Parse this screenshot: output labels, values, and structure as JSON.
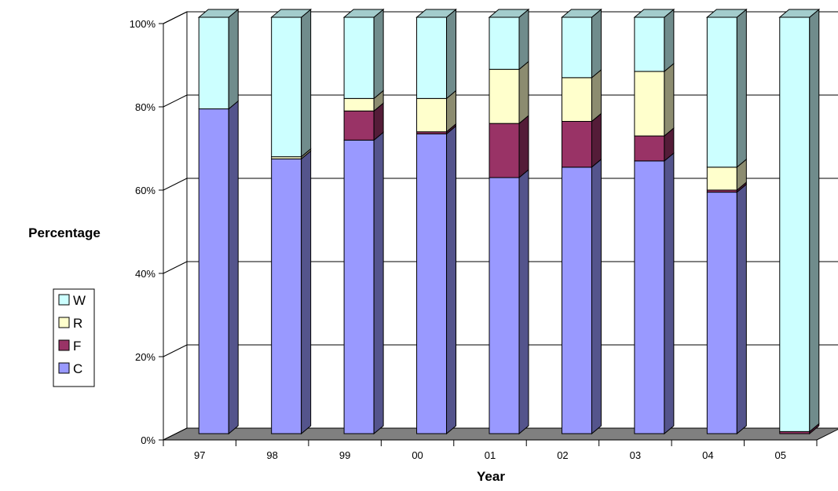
{
  "chart_data": {
    "type": "bar",
    "stacked": true,
    "percent_stacked": true,
    "three_d": true,
    "categories": [
      "97",
      "98",
      "99",
      "00",
      "01",
      "02",
      "03",
      "04",
      "05"
    ],
    "series": [
      {
        "name": "C",
        "color": "#9999FF",
        "values": [
          78,
          66,
          70.5,
          72,
          61.5,
          64,
          65.5,
          58,
          0
        ]
      },
      {
        "name": "F",
        "color": "#993366",
        "values": [
          0,
          0,
          7,
          0.5,
          13,
          11,
          6,
          0.5,
          0.5
        ]
      },
      {
        "name": "R",
        "color": "#FFFFCC",
        "values": [
          0,
          0.5,
          3,
          8,
          13,
          10.5,
          15.5,
          5.5,
          0
        ]
      },
      {
        "name": "W",
        "color": "#CCFFFF",
        "values": [
          22,
          33.5,
          19.5,
          19.5,
          12.5,
          14.5,
          13,
          36,
          99.5
        ]
      }
    ],
    "ylim": [
      0,
      100
    ],
    "yticks": [
      "0%",
      "20%",
      "40%",
      "60%",
      "80%",
      "100%"
    ],
    "xlabel": "Year",
    "ylabel": "Percentage",
    "legend_position": "left",
    "grid": true,
    "floor_color": "#808080"
  }
}
